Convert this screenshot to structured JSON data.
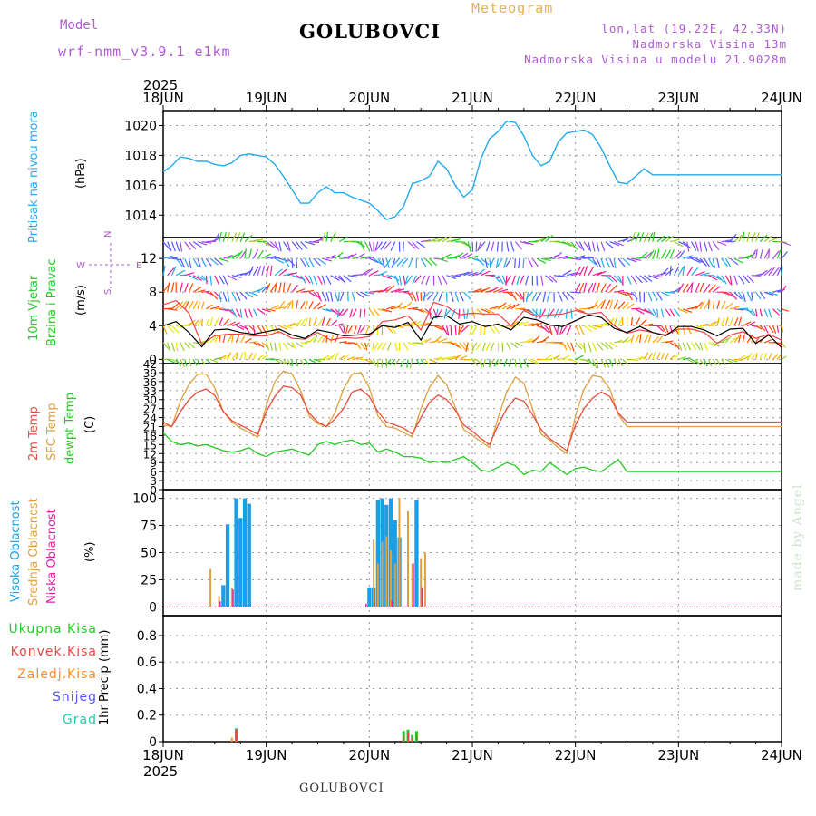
{
  "header": {
    "model_label": "Model",
    "model_name": "wrf-nmm_v3.9.1  e1km",
    "station": "GOLUBOVCI",
    "product": "Meteogram",
    "lonlat": "lon,lat (19.22E, 42.33N)",
    "elevation": "Nadmorska Visina 13m",
    "model_elevation": "Nadmorska Visina u modelu 21.9028m"
  },
  "footer": {
    "station": "GOLUBOVCI",
    "credit": "made by Angel"
  },
  "colors": {
    "pressure": "#22aaee",
    "wind_speed": "#000000",
    "wind_gust": "#ee4444",
    "temp2m": "#e84c3c",
    "sfc_temp": "#e0a040",
    "dewpoint": "#22cc22",
    "cloud_high": "#1a9ee8",
    "cloud_mid": "#e0a040",
    "cloud_low": "#dd22aa",
    "precip_total": "#22cc22",
    "precip_conv": "#ee4444",
    "precip_frozen": "#ff8c22",
    "snow": "#5555ff",
    "hail": "#22ccaa"
  },
  "chart_data": [
    {
      "type": "line",
      "panel": "pressure",
      "ylabel": "Pritisak na nivou mora",
      "unit": "(hPa)",
      "ylim": [
        1012.5,
        1021
      ],
      "yticks": [
        "1014",
        "1016",
        "1018",
        "1020"
      ],
      "ytick_values": [
        1014,
        1016,
        1018,
        1020
      ],
      "grid": true,
      "x_hours": [
        0,
        2,
        4,
        6,
        8,
        10,
        12,
        14,
        16,
        18,
        20,
        22,
        24,
        26,
        28,
        30,
        32,
        34,
        36,
        38,
        40,
        42,
        44,
        46,
        48,
        50,
        52,
        54,
        56,
        58,
        60,
        62,
        64,
        66,
        68,
        70,
        72,
        74,
        76,
        78,
        80,
        82,
        84,
        86,
        88,
        90,
        92,
        94,
        96,
        98,
        100,
        102,
        104,
        106,
        108,
        110,
        112,
        114,
        116,
        118,
        120,
        122,
        124,
        126,
        128,
        130,
        132,
        134,
        136,
        138,
        140,
        142,
        144
      ],
      "values": [
        1016.9,
        1017.3,
        1017.9,
        1017.8,
        1017.6,
        1017.6,
        1017.4,
        1017.3,
        1017.5,
        1018.0,
        1018.1,
        1018.0,
        1017.9,
        1017.4,
        1016.6,
        1015.7,
        1014.8,
        1014.8,
        1015.5,
        1015.9,
        1015.5,
        1015.5,
        1015.2,
        1015.0,
        1014.8,
        1014.3,
        1013.7,
        1013.9,
        1014.6,
        1016.1,
        1016.3,
        1016.6,
        1017.6,
        1017.1,
        1016.0,
        1015.2,
        1015.7,
        1017.8,
        1019.1,
        1019.6,
        1020.3,
        1020.2,
        1019.3,
        1018.0,
        1017.3,
        1017.6,
        1018.9,
        1019.5,
        1019.6,
        1019.7,
        1019.4,
        1018.5,
        1017.3,
        1016.2,
        1016.1,
        1016.6,
        1017.1,
        1016.7,
        1016.7,
        1016.7,
        1016.7,
        1016.7,
        1016.7,
        1016.7,
        1016.7,
        1016.7,
        1016.7,
        1016.7,
        1016.7,
        1016.7,
        1016.7,
        1016.7,
        1016.7
      ]
    },
    {
      "type": "line",
      "panel": "wind",
      "ylabel_line1": "10m Vjetar",
      "ylabel_line2": "Brzina i Pravac",
      "unit": "(m/s)",
      "ylim": [
        -0.5,
        14.5
      ],
      "yticks": [
        "0",
        "4",
        "8",
        "12"
      ],
      "ytick_values": [
        0,
        4,
        8,
        12
      ],
      "grid": true,
      "compass_labels": [
        "W",
        "E",
        "N",
        "S"
      ],
      "x_hours": [
        0,
        3,
        6,
        9,
        12,
        15,
        18,
        21,
        24,
        27,
        30,
        33,
        36,
        39,
        42,
        45,
        48,
        51,
        54,
        57,
        60,
        63,
        66,
        69,
        72,
        75,
        78,
        81,
        84,
        87,
        90,
        93,
        96,
        99,
        102,
        105,
        108,
        111,
        114,
        117,
        120,
        123,
        126,
        129,
        132,
        135,
        138,
        141,
        144
      ],
      "speed": [
        4.0,
        4.5,
        3.2,
        1.5,
        3.5,
        3.6,
        3.2,
        3.0,
        3.3,
        3.6,
        2.9,
        2.5,
        3.5,
        3.2,
        2.8,
        2.9,
        3.0,
        4.0,
        3.8,
        4.4,
        2.3,
        5.0,
        5.2,
        4.2,
        4.5,
        3.9,
        4.2,
        3.5,
        5.0,
        4.7,
        4.1,
        3.9,
        4.6,
        5.3,
        5.0,
        3.7,
        3.2,
        3.9,
        3.2,
        2.8,
        3.9,
        3.9,
        3.5,
        2.8,
        3.6,
        3.7,
        1.9,
        2.9,
        1.4
      ],
      "gust": [
        6.5,
        7.0,
        5.5,
        1.8,
        2.8,
        3.0,
        3.0,
        2.8,
        2.8,
        3.3,
        2.5,
        2.4,
        3.2,
        2.3,
        2.6,
        2.5,
        2.7,
        4.5,
        4.7,
        5.2,
        3.5,
        6.8,
        6.3,
        5.3,
        5.5,
        5.4,
        5.4,
        4.0,
        5.8,
        5.1,
        5.3,
        5.4,
        5.8,
        5.4,
        5.6,
        4.0,
        3.1,
        3.5,
        3.2,
        2.9,
        3.6,
        3.6,
        3.2,
        1.9,
        2.9,
        3.3,
        2.5,
        3.0,
        2.3
      ]
    },
    {
      "type": "line",
      "panel": "temperature",
      "ylabel_line1": "2m Temp",
      "ylabel_line2": "SFC Temp",
      "ylabel_line3": "dewpt Temp",
      "unit": "(C)",
      "ylim": [
        0,
        42
      ],
      "yticks": [
        "0",
        "3",
        "6",
        "9",
        "12",
        "15",
        "18",
        "21",
        "24",
        "27",
        "30",
        "33",
        "36",
        "39",
        "42"
      ],
      "ytick_values": [
        0,
        3,
        6,
        9,
        12,
        15,
        18,
        21,
        24,
        27,
        30,
        33,
        36,
        39,
        42
      ],
      "grid": true,
      "x_hours": [
        0,
        2,
        4,
        6,
        8,
        10,
        12,
        14,
        16,
        18,
        20,
        22,
        24,
        26,
        28,
        30,
        32,
        34,
        36,
        38,
        40,
        42,
        44,
        46,
        48,
        50,
        52,
        54,
        56,
        58,
        60,
        62,
        64,
        66,
        68,
        70,
        72,
        74,
        76,
        78,
        80,
        82,
        84,
        86,
        88,
        90,
        92,
        94,
        96,
        98,
        100,
        102,
        104,
        106,
        108,
        110,
        112,
        114,
        116,
        118,
        120,
        122,
        124,
        126,
        128,
        130,
        132,
        134,
        136,
        138,
        140,
        142,
        144
      ],
      "t2m": [
        22.5,
        21.0,
        26.0,
        30.0,
        32.5,
        33.5,
        31.5,
        26.0,
        23.0,
        21.5,
        20.0,
        18.5,
        26.0,
        31.0,
        34.5,
        34.0,
        31.5,
        25.5,
        22.5,
        21.0,
        23.5,
        27.0,
        32.5,
        33.5,
        31.0,
        26.0,
        22.5,
        21.5,
        20.5,
        18.5,
        24.0,
        29.0,
        31.5,
        30.0,
        26.5,
        21.5,
        19.5,
        17.0,
        15.0,
        21.5,
        27.0,
        30.5,
        29.5,
        25.0,
        20.0,
        17.0,
        15.0,
        13.0,
        21.5,
        27.0,
        30.5,
        32.5,
        31.0,
        25.5,
        22.5,
        22.5,
        22.5,
        22.5,
        22.5,
        22.5,
        22.5,
        22.5,
        22.5,
        22.5,
        22.5,
        22.5,
        22.5,
        22.5,
        22.5,
        22.5,
        22.5,
        22.5,
        22.5
      ],
      "sfc": [
        21.5,
        21.0,
        29.5,
        35.0,
        38.5,
        38.5,
        34.0,
        26.0,
        22.5,
        20.5,
        19.0,
        17.5,
        28.0,
        36.0,
        39.5,
        38.5,
        33.0,
        24.5,
        22.0,
        21.0,
        25.5,
        33.5,
        38.5,
        39.0,
        34.0,
        24.5,
        21.0,
        20.5,
        19.0,
        17.5,
        27.0,
        34.0,
        38.0,
        35.0,
        27.5,
        20.0,
        18.0,
        16.0,
        14.0,
        24.0,
        32.5,
        37.5,
        35.5,
        27.0,
        18.5,
        16.5,
        14.0,
        12.0,
        24.5,
        33.5,
        38.0,
        37.5,
        33.5,
        25.0,
        21.0,
        21.0,
        21.0,
        21.0,
        21.0,
        21.0,
        21.0,
        21.0,
        21.0,
        21.0,
        21.0,
        21.0,
        21.0,
        21.0,
        21.0,
        21.0,
        21.0,
        21.0,
        21.0
      ],
      "dewpt": [
        19.0,
        16.0,
        15.0,
        15.5,
        14.5,
        15.0,
        14.0,
        13.0,
        12.5,
        13.0,
        14.0,
        12.0,
        11.0,
        12.5,
        13.0,
        13.5,
        12.5,
        11.5,
        15.0,
        16.0,
        15.0,
        16.0,
        16.5,
        15.0,
        15.5,
        12.5,
        13.5,
        12.5,
        11.0,
        11.0,
        10.5,
        9.0,
        9.5,
        9.0,
        10.0,
        11.0,
        9.0,
        6.5,
        6.0,
        7.5,
        9.0,
        8.0,
        5.0,
        6.5,
        6.0,
        9.0,
        7.0,
        5.0,
        7.0,
        7.5,
        6.5,
        6.0,
        8.0,
        10.0,
        6.0,
        6.0,
        6.0,
        6.0,
        6.0,
        6.0,
        6.0,
        6.0,
        6.0,
        6.0,
        6.0,
        6.0,
        6.0,
        6.0,
        6.0,
        6.0,
        6.0,
        6.0,
        6.0
      ]
    },
    {
      "type": "bar",
      "panel": "clouds",
      "ylabel_line1": "Visoka Oblacnost",
      "ylabel_line2": "Srednja Oblacnost",
      "ylabel_line3": "Niska Oblacnost",
      "unit": "(%)",
      "ylim": [
        -8,
        108
      ],
      "yticks": [
        "0",
        "25",
        "50",
        "75",
        "100"
      ],
      "ytick_values": [
        0,
        25,
        50,
        75,
        100
      ],
      "grid": true,
      "high": [
        [
          14,
          20
        ],
        [
          15,
          76
        ],
        [
          17,
          100
        ],
        [
          18,
          82
        ],
        [
          19,
          100
        ],
        [
          20,
          95
        ],
        [
          48,
          18
        ],
        [
          49,
          18
        ],
        [
          50,
          98
        ],
        [
          51,
          100
        ],
        [
          52,
          94
        ],
        [
          53,
          100
        ],
        [
          54,
          80
        ],
        [
          55,
          64
        ],
        [
          59,
          98
        ]
      ],
      "mid": [
        [
          11,
          35
        ],
        [
          13,
          10
        ],
        [
          16,
          18
        ],
        [
          49,
          62
        ],
        [
          50,
          40
        ],
        [
          51,
          60
        ],
        [
          52,
          65
        ],
        [
          53,
          52
        ],
        [
          54,
          40
        ],
        [
          55,
          100
        ],
        [
          57,
          88
        ],
        [
          58,
          40
        ],
        [
          60,
          45
        ],
        [
          61,
          50
        ]
      ],
      "low": [
        [
          13,
          5
        ],
        [
          16,
          16
        ],
        [
          47,
          3
        ],
        [
          53,
          6
        ],
        [
          58,
          40
        ],
        [
          60,
          18
        ]
      ]
    },
    {
      "type": "bar",
      "panel": "precip",
      "ylabel": "1hr Precip",
      "unit": "(mm)",
      "legend": [
        "Ukupna Kisa",
        "Konvek.Kisa",
        "Zaledj.Kisa",
        "Snijeg",
        "Grad"
      ],
      "ylim": [
        0,
        0.95
      ],
      "yticks": [
        "0",
        "0.2",
        "0.4",
        "0.6",
        "0.8"
      ],
      "ytick_values": [
        0,
        0.2,
        0.4,
        0.6,
        0.8
      ],
      "grid": true,
      "total": [
        [
          17,
          0.1
        ],
        [
          56,
          0.08
        ],
        [
          57,
          0.09
        ],
        [
          58,
          0.05
        ],
        [
          59,
          0.08
        ]
      ],
      "conv": [
        [
          17,
          0.09
        ],
        [
          56,
          0.05
        ],
        [
          57,
          0.07
        ],
        [
          58,
          0.03
        ],
        [
          59,
          0.05
        ]
      ],
      "frozen": [
        [
          16,
          0.03
        ],
        [
          17,
          0.03
        ]
      ]
    }
  ],
  "time_axis": {
    "hours_total": 144,
    "year": "2025",
    "day_labels": [
      "18JUN",
      "19JUN",
      "20JUN",
      "21JUN",
      "22JUN",
      "23JUN",
      "24JUN"
    ]
  },
  "panel_labels": {
    "pressure": "Pritisak na nivou mora",
    "wind_line1": "10m Vjetar",
    "wind_line2": "Brzina i Pravac"
  }
}
